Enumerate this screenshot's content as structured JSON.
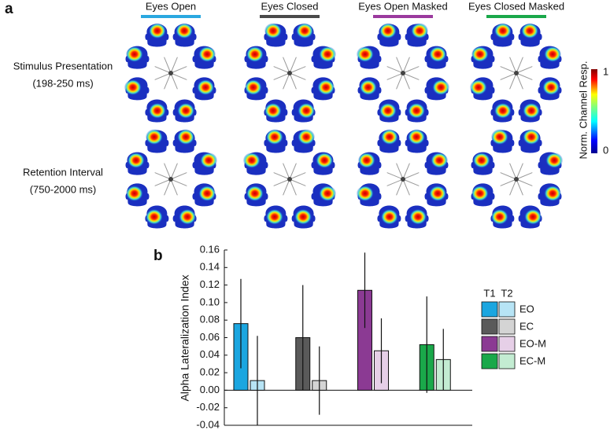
{
  "panel_a": {
    "label": "a",
    "columns": [
      {
        "title": "Eyes Open",
        "color": "#2aa8e0"
      },
      {
        "title": "Eyes Closed",
        "color": "#4a4a4a"
      },
      {
        "title": "Eyes Open Masked",
        "color": "#9b3a9e"
      },
      {
        "title": "Eyes Closed Masked",
        "color": "#1aa84a"
      }
    ],
    "rows": [
      {
        "title": "Stimulus Presentation",
        "subtitle": "(198-250 ms)"
      },
      {
        "title": "Retention Interval",
        "subtitle": "(750-2000 ms)"
      }
    ],
    "colorbar": {
      "label": "Norm. Channel Resp.",
      "lim": [
        0,
        1
      ],
      "ticks": [
        0,
        1
      ]
    }
  },
  "chart_data": {
    "type": "bar",
    "panel_label": "b",
    "ylabel": "Alpha Lateralization Index",
    "categories": [
      "EO",
      "EC",
      "EO-M",
      "EC-M"
    ],
    "series": [
      {
        "name": "T1",
        "colors": [
          "#1ba6e0",
          "#5a5a5a",
          "#8b3a93",
          "#1aa84a"
        ],
        "values": [
          0.076,
          0.06,
          0.114,
          0.052
        ],
        "errors": [
          0.051,
          0.06,
          0.043,
          0.055
        ]
      },
      {
        "name": "T2",
        "colors": [
          "#b7e4f5",
          "#d4d4d4",
          "#e6cfe7",
          "#c3ecd2"
        ],
        "values": [
          0.011,
          0.011,
          0.045,
          0.035
        ],
        "errors": [
          0.051,
          0.039,
          0.037,
          0.035
        ]
      }
    ],
    "ylim": [
      -0.04,
      0.16
    ],
    "yticks": [
      {
        "value": 0.16,
        "label": "0.16"
      },
      {
        "value": 0.14,
        "label": "0.14"
      },
      {
        "value": 0.12,
        "label": "0.12"
      },
      {
        "value": 0.1,
        "label": "0.10"
      },
      {
        "value": 0.08,
        "label": "0.08"
      },
      {
        "value": 0.06,
        "label": "0.06"
      },
      {
        "value": 0.04,
        "label": "0.04"
      },
      {
        "value": 0.02,
        "label": "0.02"
      },
      {
        "value": 0.0,
        "label": "0.00"
      },
      {
        "value": -0.02,
        "label": "-0.02"
      },
      {
        "value": -0.04,
        "label": "-0.04"
      }
    ]
  }
}
